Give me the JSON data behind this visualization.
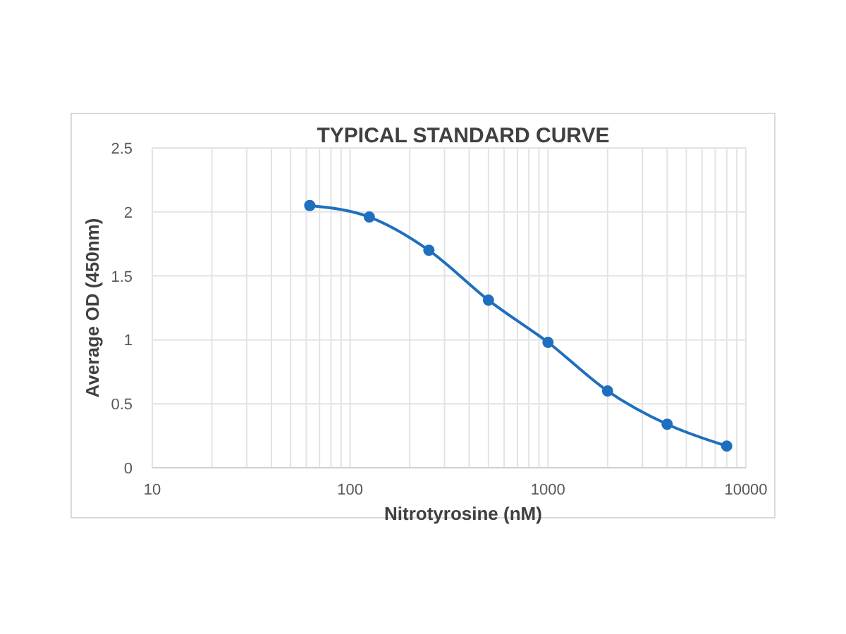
{
  "chart_data": {
    "type": "line",
    "title": "TYPICAL STANDARD CURVE",
    "xlabel": "Nitrotyrosine (nM)",
    "ylabel": "Average OD (450nm)",
    "log": "x",
    "x": [
      62.5,
      125,
      250,
      500,
      1000,
      2000,
      4000,
      8000
    ],
    "series": [
      {
        "color": "#1f6fbf",
        "values": [
          2.05,
          1.96,
          1.7,
          1.31,
          0.98,
          0.6,
          0.34,
          0.17
        ]
      }
    ],
    "xlim": [
      10,
      10000
    ],
    "xticks": [
      10,
      {
        "value": 20,
        "label": null
      },
      {
        "value": 30,
        "label": null
      },
      {
        "value": 40,
        "label": null
      },
      {
        "value": 50,
        "label": null
      },
      {
        "value": 60,
        "label": null
      },
      {
        "value": 70,
        "label": null
      },
      {
        "value": 80,
        "label": null
      },
      {
        "value": 90,
        "label": null
      },
      100,
      {
        "value": 200,
        "label": null
      },
      {
        "value": 300,
        "label": null
      },
      {
        "value": 400,
        "label": null
      },
      {
        "value": 500,
        "label": null
      },
      {
        "value": 600,
        "label": null
      },
      {
        "value": 700,
        "label": null
      },
      {
        "value": 800,
        "label": null
      },
      {
        "value": 900,
        "label": null
      },
      1000,
      {
        "value": 2000,
        "label": null
      },
      {
        "value": 3000,
        "label": null
      },
      {
        "value": 4000,
        "label": null
      },
      {
        "value": 5000,
        "label": null
      },
      {
        "value": 6000,
        "label": null
      },
      {
        "value": 7000,
        "label": null
      },
      {
        "value": 8000,
        "label": null
      },
      {
        "value": 9000,
        "label": null
      },
      10000
    ],
    "ylim": [
      0,
      2.5
    ],
    "yticks": [
      0,
      0.5,
      1,
      1.5,
      2,
      2.5
    ],
    "grid": true,
    "marker": "circle",
    "line_style": "solid"
  }
}
